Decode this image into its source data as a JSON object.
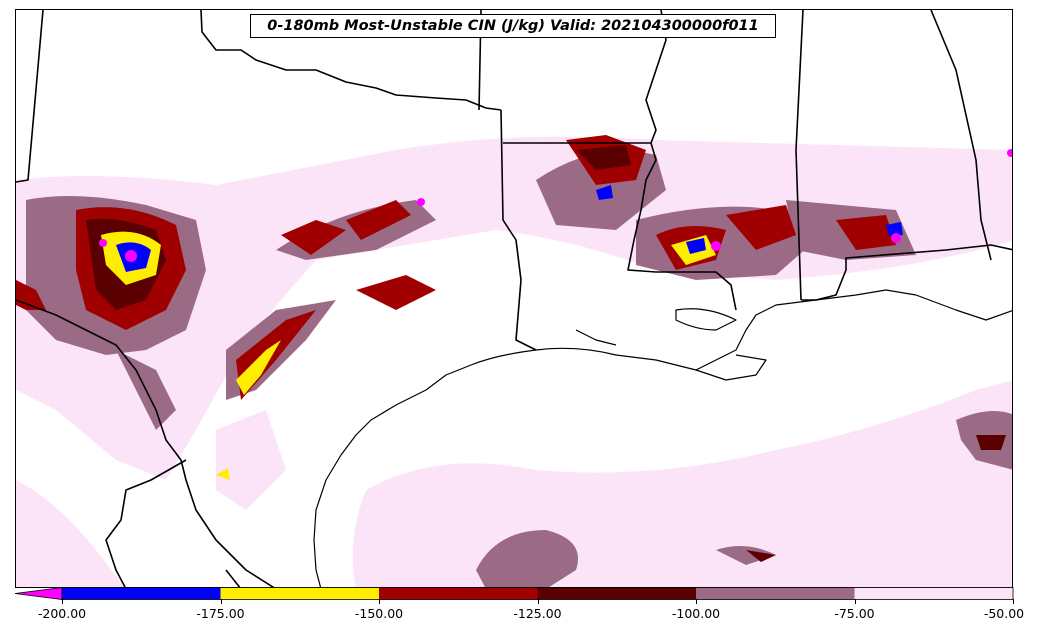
{
  "title": "0-180mb Most-Unstable CIN (J/kg) Valid: 202104300000f011",
  "colorbar": {
    "levels": [
      -200,
      -175,
      -150,
      -125,
      -100,
      -75,
      -50
    ],
    "tick_labels": [
      "-200.00",
      "-175.00",
      "-150.00",
      "-125.00",
      "-100.00",
      "-75.00",
      "-50.00"
    ],
    "colors": [
      "#0000ff",
      "#ffee00",
      "#a00000",
      "#5a0000",
      "#9b6b86",
      "#fce4f8"
    ],
    "under_color": "#ff00ff",
    "extend": "min"
  },
  "colors": {
    "magenta": "#ff00ff",
    "blue": "#0000ff",
    "yellow": "#ffee00",
    "red": "#a00000",
    "darkred": "#5a0000",
    "mauve": "#9b6b86",
    "pink": "#fce4f8",
    "border": "#000000"
  }
}
